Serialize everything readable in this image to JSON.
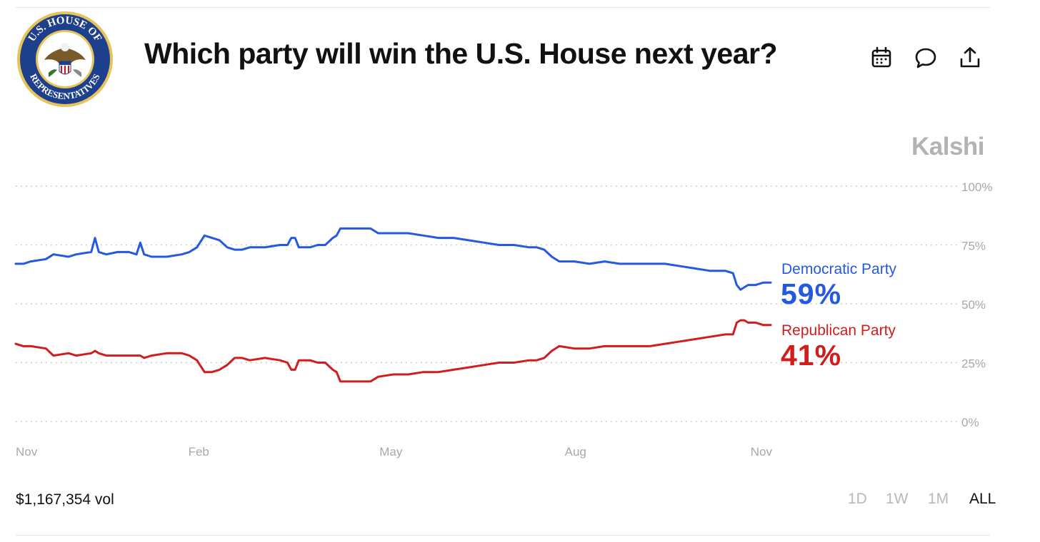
{
  "header": {
    "title": "Which party will win the U.S. House next year?",
    "seal_text_top": "U.S. HOUSE OF",
    "seal_text_bottom": "REPRESENTATIVES",
    "icons": [
      "calendar-icon",
      "comment-icon",
      "share-icon"
    ]
  },
  "brand": "Kalshi",
  "chart_data": {
    "type": "line",
    "ylim": [
      0,
      100
    ],
    "y_ticks": [
      "100%",
      "75%",
      "50%",
      "25%",
      "0%"
    ],
    "x_ticks": [
      "Nov",
      "Feb",
      "May",
      "Aug",
      "Nov"
    ],
    "grid": true,
    "x_start_month": "Nov",
    "x_end_month": "Nov",
    "x_tick_positions_frac": [
      0,
      0.2437,
      0.4969,
      0.7423,
      0.9922
    ],
    "series": [
      {
        "name": "Democratic Party",
        "color": "#2459e0",
        "current": "59%",
        "points": [
          [
            0.0,
            67
          ],
          [
            0.01,
            67
          ],
          [
            0.02,
            68
          ],
          [
            0.04,
            69
          ],
          [
            0.05,
            71
          ],
          [
            0.07,
            70
          ],
          [
            0.08,
            71
          ],
          [
            0.1,
            72
          ],
          [
            0.105,
            78
          ],
          [
            0.11,
            72
          ],
          [
            0.12,
            71
          ],
          [
            0.135,
            72
          ],
          [
            0.15,
            72
          ],
          [
            0.16,
            71
          ],
          [
            0.165,
            76
          ],
          [
            0.17,
            71
          ],
          [
            0.18,
            70
          ],
          [
            0.2,
            70
          ],
          [
            0.22,
            71
          ],
          [
            0.23,
            72
          ],
          [
            0.24,
            74
          ],
          [
            0.25,
            79
          ],
          [
            0.26,
            78
          ],
          [
            0.27,
            77
          ],
          [
            0.28,
            74
          ],
          [
            0.29,
            73
          ],
          [
            0.3,
            73
          ],
          [
            0.31,
            74
          ],
          [
            0.33,
            74
          ],
          [
            0.35,
            75
          ],
          [
            0.36,
            75
          ],
          [
            0.365,
            78
          ],
          [
            0.37,
            78
          ],
          [
            0.375,
            74
          ],
          [
            0.39,
            74
          ],
          [
            0.4,
            75
          ],
          [
            0.41,
            75
          ],
          [
            0.42,
            78
          ],
          [
            0.425,
            79
          ],
          [
            0.43,
            82
          ],
          [
            0.44,
            82
          ],
          [
            0.46,
            82
          ],
          [
            0.47,
            82
          ],
          [
            0.48,
            80
          ],
          [
            0.5,
            80
          ],
          [
            0.52,
            80
          ],
          [
            0.54,
            79
          ],
          [
            0.56,
            78
          ],
          [
            0.58,
            78
          ],
          [
            0.6,
            77
          ],
          [
            0.62,
            76
          ],
          [
            0.64,
            75
          ],
          [
            0.66,
            75
          ],
          [
            0.68,
            74
          ],
          [
            0.69,
            74
          ],
          [
            0.7,
            73
          ],
          [
            0.71,
            70
          ],
          [
            0.72,
            68
          ],
          [
            0.74,
            68
          ],
          [
            0.76,
            67
          ],
          [
            0.78,
            68
          ],
          [
            0.8,
            67
          ],
          [
            0.82,
            67
          ],
          [
            0.84,
            67
          ],
          [
            0.86,
            67
          ],
          [
            0.88,
            66
          ],
          [
            0.9,
            65
          ],
          [
            0.92,
            64
          ],
          [
            0.94,
            64
          ],
          [
            0.95,
            63
          ],
          [
            0.955,
            58
          ],
          [
            0.96,
            56
          ],
          [
            0.965,
            57
          ],
          [
            0.97,
            58
          ],
          [
            0.98,
            58
          ],
          [
            0.99,
            59
          ],
          [
            1.0,
            59
          ]
        ]
      },
      {
        "name": "Republican Party",
        "color": "#d11d1d",
        "current": "41%",
        "points": [
          [
            0.0,
            33
          ],
          [
            0.01,
            32
          ],
          [
            0.02,
            32
          ],
          [
            0.04,
            31
          ],
          [
            0.05,
            28
          ],
          [
            0.07,
            29
          ],
          [
            0.08,
            28
          ],
          [
            0.1,
            29
          ],
          [
            0.105,
            30
          ],
          [
            0.11,
            29
          ],
          [
            0.12,
            28
          ],
          [
            0.135,
            28
          ],
          [
            0.15,
            28
          ],
          [
            0.16,
            28
          ],
          [
            0.165,
            28
          ],
          [
            0.17,
            27
          ],
          [
            0.18,
            28
          ],
          [
            0.2,
            29
          ],
          [
            0.22,
            29
          ],
          [
            0.23,
            28
          ],
          [
            0.24,
            26
          ],
          [
            0.25,
            21
          ],
          [
            0.26,
            21
          ],
          [
            0.27,
            22
          ],
          [
            0.28,
            24
          ],
          [
            0.29,
            27
          ],
          [
            0.3,
            27
          ],
          [
            0.31,
            26
          ],
          [
            0.33,
            27
          ],
          [
            0.35,
            26
          ],
          [
            0.36,
            25
          ],
          [
            0.365,
            22
          ],
          [
            0.37,
            22
          ],
          [
            0.375,
            26
          ],
          [
            0.39,
            26
          ],
          [
            0.4,
            25
          ],
          [
            0.41,
            25
          ],
          [
            0.42,
            22
          ],
          [
            0.425,
            21
          ],
          [
            0.43,
            17
          ],
          [
            0.44,
            17
          ],
          [
            0.46,
            17
          ],
          [
            0.47,
            17
          ],
          [
            0.48,
            19
          ],
          [
            0.5,
            20
          ],
          [
            0.52,
            20
          ],
          [
            0.54,
            21
          ],
          [
            0.56,
            21
          ],
          [
            0.58,
            22
          ],
          [
            0.6,
            23
          ],
          [
            0.62,
            24
          ],
          [
            0.64,
            25
          ],
          [
            0.66,
            25
          ],
          [
            0.68,
            26
          ],
          [
            0.69,
            26
          ],
          [
            0.7,
            27
          ],
          [
            0.71,
            30
          ],
          [
            0.72,
            32
          ],
          [
            0.74,
            31
          ],
          [
            0.76,
            31
          ],
          [
            0.78,
            32
          ],
          [
            0.8,
            32
          ],
          [
            0.82,
            32
          ],
          [
            0.84,
            32
          ],
          [
            0.86,
            33
          ],
          [
            0.88,
            34
          ],
          [
            0.9,
            35
          ],
          [
            0.92,
            36
          ],
          [
            0.94,
            37
          ],
          [
            0.95,
            37
          ],
          [
            0.955,
            42
          ],
          [
            0.96,
            43
          ],
          [
            0.965,
            43
          ],
          [
            0.97,
            42
          ],
          [
            0.98,
            42
          ],
          [
            0.99,
            41
          ],
          [
            1.0,
            41
          ]
        ]
      }
    ]
  },
  "footer": {
    "volume": "$1,167,354 vol",
    "ranges": [
      "1D",
      "1W",
      "1M",
      "ALL"
    ],
    "active_range": "ALL"
  }
}
